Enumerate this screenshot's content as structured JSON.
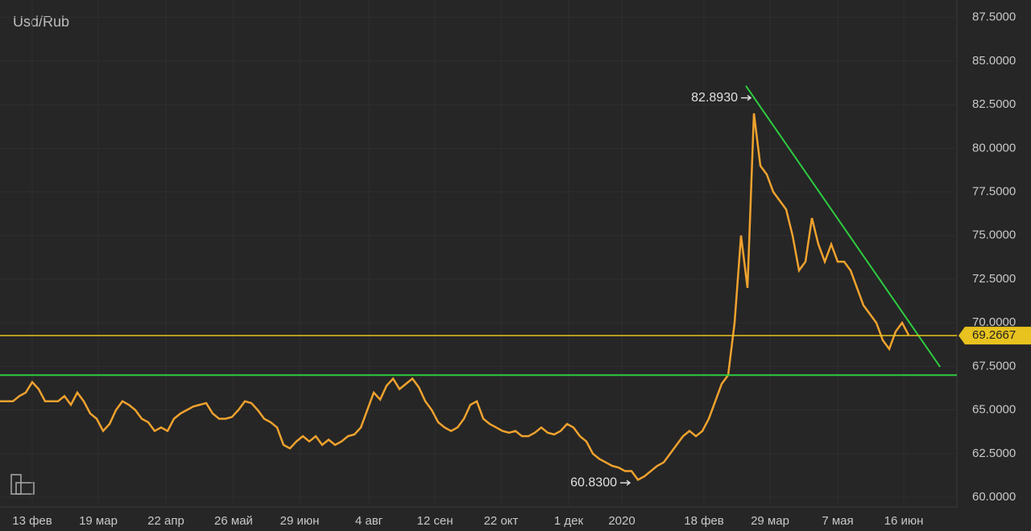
{
  "chart_data": {
    "type": "line",
    "title": "Usd/Rub",
    "color": "#f0a22e",
    "values": [
      65.5,
      65.5,
      65.5,
      65.8,
      66,
      66.6,
      66.2,
      65.5,
      65.5,
      65.5,
      65.8,
      65.3,
      66,
      65.5,
      64.8,
      64.5,
      63.8,
      64.2,
      65,
      65.5,
      65.3,
      65,
      64.5,
      64.3,
      63.8,
      64,
      63.8,
      64.5,
      64.8,
      65,
      65.2,
      65.3,
      65.4,
      64.8,
      64.5,
      64.5,
      64.6,
      65,
      65.5,
      65.4,
      65,
      64.5,
      64.3,
      64,
      63,
      62.8,
      63.2,
      63.5,
      63.2,
      63.5,
      63,
      63.3,
      63,
      63.2,
      63.5,
      63.6,
      64,
      65,
      66,
      65.6,
      66.4,
      66.8,
      66.2,
      66.5,
      66.8,
      66.3,
      65.5,
      65,
      64.3,
      64,
      63.8,
      64,
      64.5,
      65.3,
      65.5,
      64.5,
      64.2,
      64,
      63.8,
      63.7,
      63.8,
      63.5,
      63.5,
      63.7,
      64,
      63.7,
      63.6,
      63.8,
      64.2,
      64,
      63.5,
      63.2,
      62.5,
      62.2,
      62,
      61.8,
      61.7,
      61.5,
      61.5,
      61,
      61.2,
      61.5,
      61.8,
      62,
      62.5,
      63,
      63.5,
      63.8,
      63.5,
      63.8,
      64.5,
      65.5,
      66.5,
      67,
      70,
      75,
      72,
      82,
      79,
      78.5,
      77.5,
      77,
      76.5,
      75,
      73,
      73.5,
      76,
      74.5,
      73.5,
      74.5,
      73.5,
      73.5,
      73,
      72,
      71,
      70.5,
      70,
      69,
      68.5,
      69.5,
      70,
      69.3
    ],
    "xlim": [
      0,
      148.5
    ],
    "xticks": [
      {
        "value": 5,
        "label": "13 фев"
      },
      {
        "value": 15.25,
        "label": "19 мар"
      },
      {
        "value": 25.75,
        "label": "22 апр"
      },
      {
        "value": 36.25,
        "label": "26 май"
      },
      {
        "value": 46.5,
        "label": "29 июн"
      },
      {
        "value": 57.25,
        "label": "4 авг"
      },
      {
        "value": 67.5,
        "label": "12 сен"
      },
      {
        "value": 77.75,
        "label": "22 окт"
      },
      {
        "value": 88.25,
        "label": "1 дек"
      },
      {
        "value": 96.5,
        "label": "2020"
      },
      {
        "value": 109.25,
        "label": "18 фев"
      },
      {
        "value": 119.5,
        "label": "29 мар"
      },
      {
        "value": 130,
        "label": "7 мая"
      },
      {
        "value": 140.25,
        "label": "16 июн"
      }
    ],
    "ylim": [
      59.45,
      88.5
    ],
    "yticks": [
      {
        "value": 60,
        "label": "60.0000"
      },
      {
        "value": 62.5,
        "label": "62.5000"
      },
      {
        "value": 65,
        "label": "65.0000"
      },
      {
        "value": 67.5,
        "label": "67.5000"
      },
      {
        "value": 70,
        "label": "70.0000"
      },
      {
        "value": 72.5,
        "label": "72.5000"
      },
      {
        "value": 75,
        "label": "75.0000"
      },
      {
        "value": 77.5,
        "label": "77.5000"
      },
      {
        "value": 80,
        "label": "80.0000"
      },
      {
        "value": 82.5,
        "label": "82.5000"
      },
      {
        "value": 85,
        "label": "85.0000"
      },
      {
        "value": 87.5,
        "label": "87.5000"
      }
    ],
    "grid": true,
    "annotations": [
      {
        "x": 116.75,
        "value": 82.893,
        "label": "82.8930"
      },
      {
        "x": 98,
        "value": 60.83,
        "label": "60.8300"
      }
    ],
    "price_line": {
      "value": 69.2667,
      "label": "69.2667",
      "color": "#e8c21e"
    },
    "support_line": {
      "value": 67,
      "color": "#2ecc40"
    },
    "trend_line": {
      "x": [
        115.75,
        145.9
      ],
      "values": [
        83.58,
        67.47
      ],
      "color": "#2ecc40"
    }
  }
}
